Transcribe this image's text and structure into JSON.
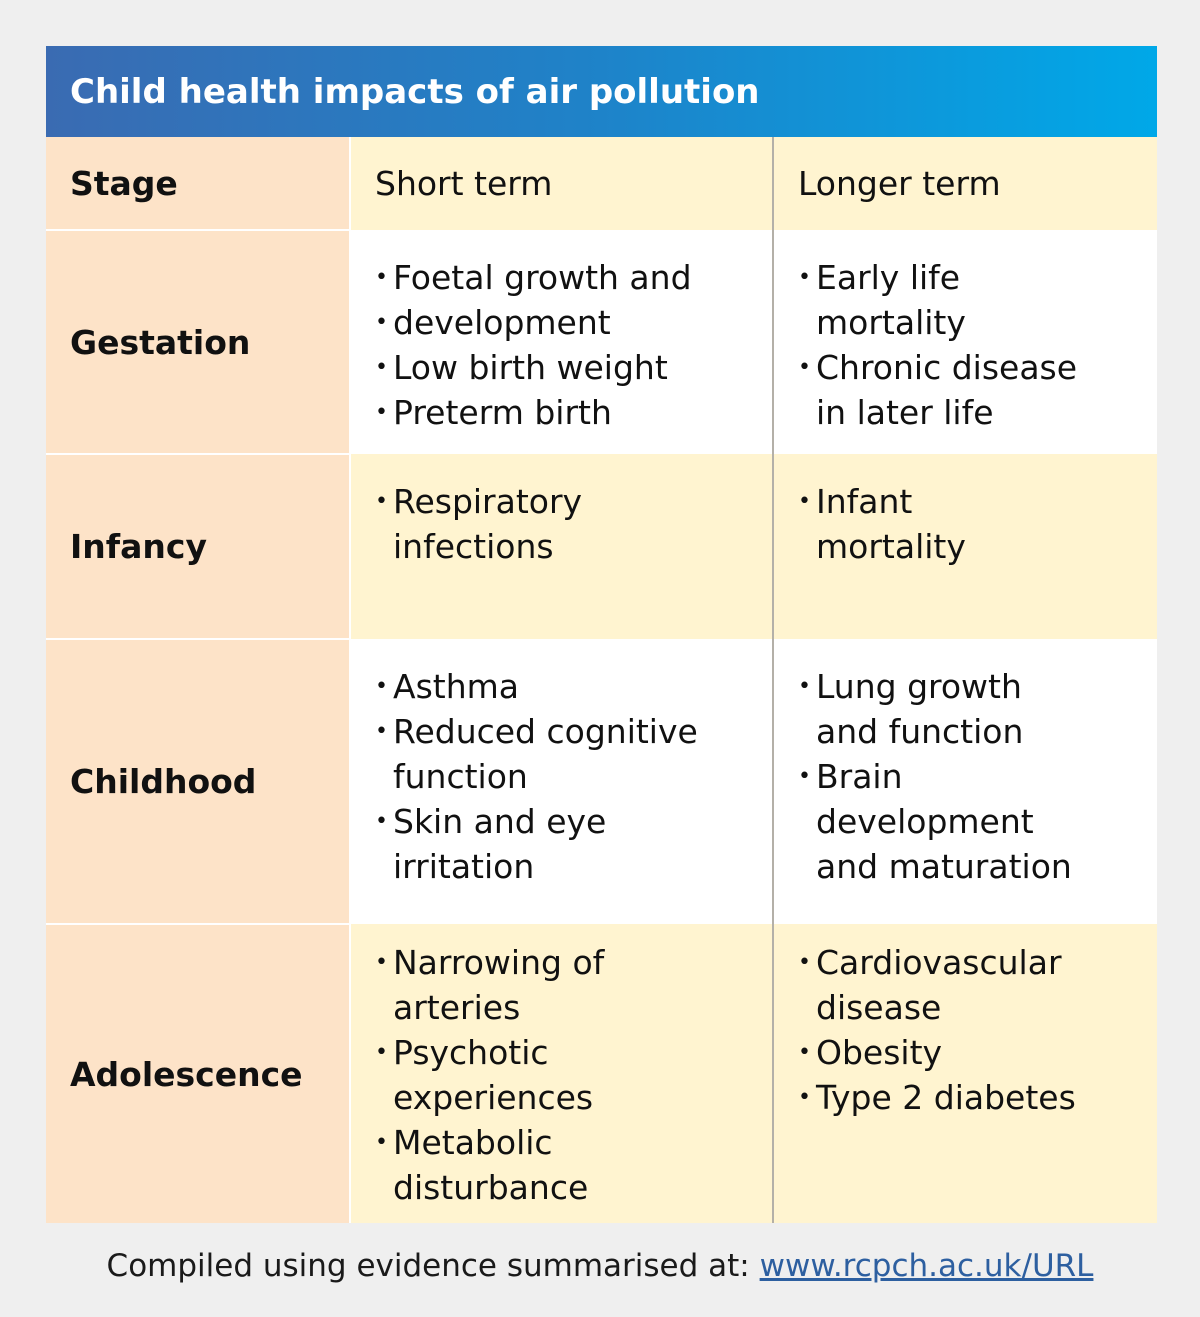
{
  "title": "Child health impacts of air pollution",
  "headers": {
    "stage": "Stage",
    "short": "Short term",
    "longer": "Longer term"
  },
  "rows": [
    {
      "stage": "Gestation",
      "short": [
        "Foetal growth and",
        "development",
        "Low birth weight",
        "Preterm birth"
      ],
      "longer": [
        "Early life\nmortality",
        "Chronic disease\nin later life"
      ]
    },
    {
      "stage": "Infancy",
      "short": [
        "Respiratory\ninfections"
      ],
      "longer": [
        "Infant\nmortality"
      ]
    },
    {
      "stage": "Childhood",
      "short": [
        "Asthma",
        "Reduced cognitive\nfunction",
        "Skin and eye\nirritation"
      ],
      "longer": [
        "Lung growth\nand function",
        "Brain\ndevelopment\nand maturation"
      ]
    },
    {
      "stage": "Adolescence",
      "short": [
        "Narrowing of\narteries",
        "Psychotic\nexperiences",
        "Metabolic\ndisturbance"
      ],
      "longer": [
        "Cardiovascular\ndisease",
        "Obesity",
        "Type 2 diabetes"
      ]
    }
  ],
  "footer": {
    "text": "Compiled using evidence summarised at: ",
    "link": "www.rcpch.ac.uk/URL"
  },
  "colors": {
    "stage_bg": "#fde3c8",
    "yellow_bg": "#fff4d0",
    "title_start": "#3a6bb2",
    "title_end": "#00a8e8",
    "link": "#2d5fa0"
  }
}
